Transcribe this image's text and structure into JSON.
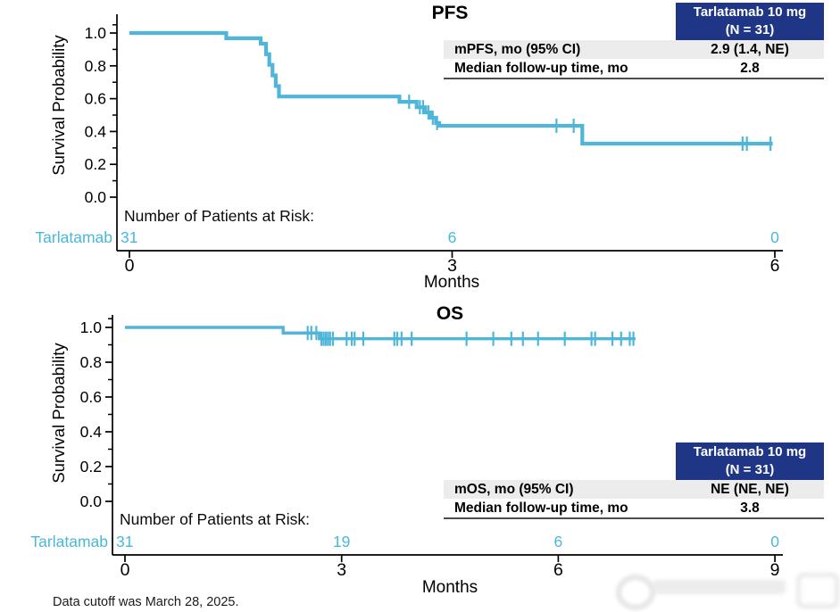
{
  "palette": {
    "curve": "#4fb6da",
    "accent_text": "#4ab7db",
    "header_bg": "#1f3585",
    "header_text": "#ffffff",
    "row_alt_bg": "#ececec",
    "axis": "#000000"
  },
  "footer": {
    "note": "Data cutoff was March 28, 2025."
  },
  "chart_data": [
    {
      "type": "line",
      "subtype": "kaplan-meier-step",
      "title": "PFS",
      "xlabel": "Months",
      "ylabel": "Survival Probability",
      "xlim": [
        0,
        6
      ],
      "ylim": [
        0.0,
        1.0
      ],
      "grid": false,
      "x_ticks": [
        "0",
        "3",
        "6"
      ],
      "x_tick_values": [
        0,
        3,
        6
      ],
      "y_ticks": [
        "1.0",
        "0.8",
        "0.6",
        "0.4",
        "0.2",
        "0.0"
      ],
      "y_tick_values": [
        1.0,
        0.8,
        0.6,
        0.4,
        0.2,
        0.0
      ],
      "y_minor_tick_values": [
        1.05,
        0.9,
        0.7,
        0.5,
        0.3,
        0.1
      ],
      "series": [
        {
          "name": "Tarlatamab 10 mg",
          "color": "#4fb6da",
          "step_points": [
            [
              0,
              1.0
            ],
            [
              0.9,
              0.968
            ],
            [
              1.22,
              0.935
            ],
            [
              1.27,
              0.871
            ],
            [
              1.3,
              0.806
            ],
            [
              1.33,
              0.742
            ],
            [
              1.36,
              0.677
            ],
            [
              1.39,
              0.613
            ],
            [
              2.51,
              0.581
            ],
            [
              2.67,
              0.548
            ],
            [
              2.75,
              0.516
            ],
            [
              2.8,
              0.484
            ],
            [
              2.85,
              0.452
            ],
            [
              2.88,
              0.435
            ],
            [
              4.21,
              0.326
            ]
          ],
          "end_x": 5.98,
          "censor_marks": [
            [
              2.6,
              0.581
            ],
            [
              2.7,
              0.548
            ],
            [
              2.73,
              0.548
            ],
            [
              2.78,
              0.516
            ],
            [
              2.82,
              0.484
            ],
            [
              2.86,
              0.452
            ],
            [
              3.97,
              0.435
            ],
            [
              4.13,
              0.435
            ],
            [
              5.7,
              0.326
            ],
            [
              5.74,
              0.326
            ],
            [
              5.96,
              0.326
            ]
          ]
        }
      ],
      "risk_table": {
        "label": "Number of Patients at Risk:",
        "arm": "Tarlatamab",
        "times": [
          0,
          3,
          6
        ],
        "counts": [
          "31",
          "6",
          "0"
        ]
      },
      "stats_table": {
        "header_line1": "Tarlatamab 10 mg",
        "header_line2": "(N = 31)",
        "rows": [
          {
            "label": "mPFS, mo (95% CI)",
            "value": "2.9 (1.4, NE)"
          },
          {
            "label": "Median follow-up time, mo",
            "value": "2.8"
          }
        ]
      }
    },
    {
      "type": "line",
      "subtype": "kaplan-meier-step",
      "title": "OS",
      "xlabel": "Months",
      "ylabel": "Survival Probability",
      "xlim": [
        0,
        9
      ],
      "ylim": [
        0.0,
        1.0
      ],
      "grid": false,
      "x_ticks": [
        "0",
        "3",
        "6",
        "9"
      ],
      "x_tick_values": [
        0,
        3,
        6,
        9
      ],
      "y_ticks": [
        "1.0",
        "0.8",
        "0.6",
        "0.4",
        "0.2",
        "0.0"
      ],
      "y_tick_values": [
        1.0,
        0.8,
        0.6,
        0.4,
        0.2,
        0.0
      ],
      "y_minor_tick_values": [
        1.05,
        0.9,
        0.7,
        0.5,
        0.3,
        0.1
      ],
      "series": [
        {
          "name": "Tarlatamab 10 mg",
          "color": "#4fb6da",
          "step_points": [
            [
              0,
              1.0
            ],
            [
              2.19,
              0.968
            ],
            [
              2.69,
              0.935
            ]
          ],
          "end_x": 7.07,
          "censor_marks": [
            [
              2.53,
              0.968
            ],
            [
              2.58,
              0.968
            ],
            [
              2.65,
              0.968
            ],
            [
              2.72,
              0.935
            ],
            [
              2.75,
              0.935
            ],
            [
              2.78,
              0.935
            ],
            [
              2.81,
              0.935
            ],
            [
              2.84,
              0.935
            ],
            [
              2.88,
              0.935
            ],
            [
              3.07,
              0.935
            ],
            [
              3.14,
              0.935
            ],
            [
              3.18,
              0.935
            ],
            [
              3.3,
              0.935
            ],
            [
              3.73,
              0.935
            ],
            [
              3.77,
              0.935
            ],
            [
              3.83,
              0.935
            ],
            [
              3.97,
              0.935
            ],
            [
              4.73,
              0.935
            ],
            [
              5.1,
              0.935
            ],
            [
              5.35,
              0.935
            ],
            [
              5.51,
              0.935
            ],
            [
              5.72,
              0.935
            ],
            [
              6.09,
              0.935
            ],
            [
              6.46,
              0.935
            ],
            [
              6.51,
              0.935
            ],
            [
              6.75,
              0.935
            ],
            [
              6.87,
              0.935
            ],
            [
              6.99,
              0.935
            ],
            [
              7.04,
              0.935
            ]
          ]
        }
      ],
      "risk_table": {
        "label": "Number of Patients at Risk:",
        "arm": "Tarlatamab",
        "times": [
          0,
          3,
          6,
          9
        ],
        "counts": [
          "31",
          "19",
          "6",
          "0"
        ]
      },
      "stats_table": {
        "header_line1": "Tarlatamab 10 mg",
        "header_line2": "(N = 31)",
        "rows": [
          {
            "label": "mOS, mo (95% CI)",
            "value": "NE (NE, NE)"
          },
          {
            "label": "Median follow-up time, mo",
            "value": "3.8"
          }
        ]
      }
    }
  ]
}
